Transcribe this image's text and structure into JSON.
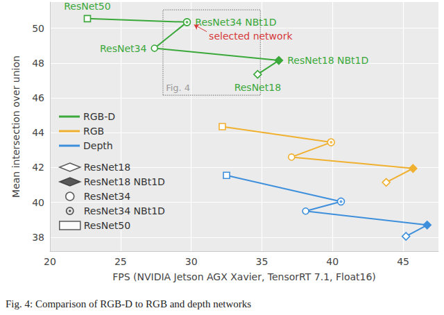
{
  "chart_data": {
    "type": "line",
    "x_label": "FPS (NVIDIA Jetson AGX Xavier, TensorRT 7.1, Float16)",
    "y_label": "Mean intersection over union",
    "caption": "Fig. 4: Comparison of RGB-D to RGB and depth networks",
    "xlim": [
      20,
      47.5
    ],
    "ylim": [
      37.2,
      51.5
    ],
    "xticks": [
      20,
      25,
      30,
      35,
      40,
      45
    ],
    "yticks": [
      38,
      40,
      42,
      44,
      46,
      48,
      50
    ],
    "grid": true,
    "legend": "upper left",
    "series": [
      {
        "name": "RGB-D",
        "color": "#3aa83a",
        "x": [
          22.65,
          29.7,
          27.4,
          36.2,
          34.7
        ],
        "values": [
          50.55,
          50.35,
          48.85,
          48.15,
          47.35
        ],
        "models": [
          "ResNet50",
          "ResNet34 NBt1D",
          "ResNet34",
          "ResNet18 NBt1D",
          "ResNet18"
        ],
        "labels": [
          "ResNet50",
          "ResNet34 NBt1D",
          "ResNet34",
          "ResNet18 NBt1D",
          "ResNet18"
        ]
      },
      {
        "name": "RGB",
        "color": "#f0b030",
        "x": [
          32.2,
          39.9,
          37.1,
          45.7,
          43.8
        ],
        "values": [
          44.35,
          43.45,
          42.6,
          41.95,
          41.15
        ],
        "models": [
          "ResNet50",
          "ResNet34 NBt1D",
          "ResNet34",
          "ResNet18 NBt1D",
          "ResNet18"
        ]
      },
      {
        "name": "Depth",
        "color": "#3d8fdc",
        "x": [
          32.5,
          40.6,
          38.1,
          46.7,
          45.2
        ],
        "values": [
          41.55,
          40.05,
          39.5,
          38.7,
          38.05
        ],
        "models": [
          "ResNet50",
          "ResNet34 NBt1D",
          "ResNet34",
          "ResNet18 NBt1D",
          "ResNet18"
        ]
      }
    ],
    "marker_legend": [
      {
        "name": "ResNet18",
        "marker": "diamond"
      },
      {
        "name": "ResNet18 NBt1D",
        "marker": "diamond-filled"
      },
      {
        "name": "ResNet34",
        "marker": "circle"
      },
      {
        "name": "ResNet34 NBt1D",
        "marker": "circle-dot"
      },
      {
        "name": "ResNet50",
        "marker": "square"
      }
    ],
    "region": {
      "label": "Fig. 4",
      "x": [
        28.0,
        34.9
      ],
      "y": [
        46.15,
        51.05
      ]
    },
    "annotation": {
      "text": "selected network",
      "color": "#d63a3a",
      "x": 31.25,
      "y": 49.55,
      "arrow_from": [
        31.1,
        49.8
      ],
      "arrow_to": [
        30.2,
        50.2
      ]
    }
  }
}
